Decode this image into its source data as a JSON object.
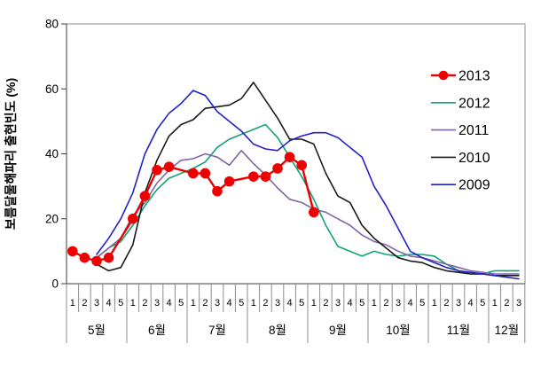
{
  "chart_data": {
    "type": "line",
    "title": "",
    "ylabel": "보름달물해파리 출현빈도 (%)",
    "ylim": [
      0,
      80
    ],
    "yticks": [
      0,
      20,
      40,
      60,
      80
    ],
    "grid": false,
    "legend_position": "upper right",
    "x_axis": {
      "months": [
        {
          "label": "5월",
          "weeks": [
            "1",
            "2",
            "3",
            "4",
            "5"
          ]
        },
        {
          "label": "6월",
          "weeks": [
            "1",
            "2",
            "3",
            "4",
            "5"
          ]
        },
        {
          "label": "7월",
          "weeks": [
            "1",
            "2",
            "3",
            "4",
            "5"
          ]
        },
        {
          "label": "8월",
          "weeks": [
            "1",
            "2",
            "3",
            "4",
            "5"
          ]
        },
        {
          "label": "9월",
          "weeks": [
            "1",
            "2",
            "3",
            "4",
            "5"
          ]
        },
        {
          "label": "10월",
          "weeks": [
            "1",
            "2",
            "3",
            "4",
            "5"
          ]
        },
        {
          "label": "11월",
          "weeks": [
            "1",
            "2",
            "3",
            "4",
            "5"
          ]
        },
        {
          "label": "12월",
          "weeks": [
            "1",
            "2",
            "3"
          ]
        }
      ]
    },
    "series": [
      {
        "name": "2013",
        "color": "#ee0000",
        "marker": "circle",
        "line_width": 2.4,
        "values": [
          10,
          8,
          7,
          8,
          null,
          20,
          27,
          35,
          36,
          null,
          34,
          34,
          28.5,
          31.5,
          null,
          33,
          33,
          35.5,
          39,
          36.5,
          22,
          null,
          null,
          null,
          null,
          null,
          null,
          null,
          null,
          null,
          null,
          null,
          null,
          null,
          null,
          null,
          null,
          null
        ]
      },
      {
        "name": "2012",
        "color": "#0fa375",
        "marker": "none",
        "line_width": 1.6,
        "values": [
          null,
          null,
          8,
          11,
          13,
          18,
          24,
          29,
          32.5,
          34,
          35.5,
          37.5,
          42,
          44.5,
          46,
          47.5,
          49,
          45,
          39,
          33,
          26,
          18,
          11.5,
          10,
          8.5,
          10,
          9,
          8.5,
          9,
          9,
          8.5,
          6,
          4,
          3,
          3,
          4,
          4,
          4
        ]
      },
      {
        "name": "2011",
        "color": "#8064a2",
        "marker": "none",
        "line_width": 1.6,
        "values": [
          null,
          null,
          8,
          11,
          14,
          21,
          25,
          31,
          35,
          38,
          38.5,
          40,
          39,
          36.5,
          41,
          37,
          33.5,
          29.5,
          26,
          25,
          23,
          22,
          20,
          18,
          15,
          13,
          12,
          10,
          8.5,
          8,
          7,
          6,
          5,
          4,
          3.5,
          3,
          3,
          3
        ]
      },
      {
        "name": "2010",
        "color": "#1a1a1a",
        "marker": "none",
        "line_width": 1.6,
        "values": [
          null,
          null,
          6,
          4,
          5,
          12,
          28,
          38,
          45.5,
          49,
          50.5,
          54,
          54.5,
          55,
          57,
          62,
          56.5,
          51,
          44.5,
          44.5,
          43,
          34,
          27,
          25,
          18,
          14,
          11,
          8,
          7,
          6.5,
          5,
          4,
          3.5,
          3,
          3,
          2.5,
          2.5,
          2.5
        ]
      },
      {
        "name": "2009",
        "color": "#2222cc",
        "marker": "none",
        "line_width": 1.6,
        "values": [
          null,
          null,
          9,
          14,
          20,
          28,
          40,
          47.5,
          52.5,
          55.5,
          59.5,
          58,
          53,
          50,
          47,
          43,
          41.5,
          41,
          44,
          45.5,
          46.5,
          46.5,
          45,
          42,
          39,
          30,
          24,
          17,
          10,
          8,
          6.5,
          5,
          4,
          3.5,
          3,
          2.5,
          2,
          1.5
        ]
      }
    ],
    "legend": [
      "2013",
      "2012",
      "2011",
      "2010",
      "2009"
    ]
  }
}
